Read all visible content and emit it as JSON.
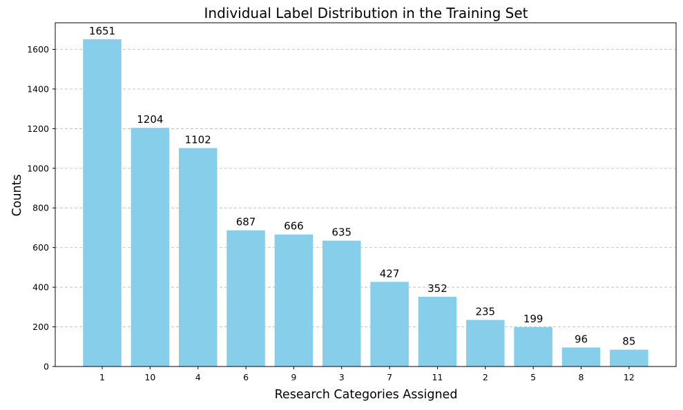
{
  "chart_data": {
    "type": "bar",
    "title": "Individual Label Distribution in the Training Set",
    "xlabel": "Research Categories Assigned",
    "ylabel": "Counts",
    "categories": [
      "1",
      "10",
      "4",
      "6",
      "9",
      "3",
      "7",
      "11",
      "2",
      "5",
      "8",
      "12"
    ],
    "values": [
      1651,
      1204,
      1102,
      687,
      666,
      635,
      427,
      352,
      235,
      199,
      96,
      85
    ],
    "ylim": [
      0,
      1734
    ],
    "yticks": [
      0,
      200,
      400,
      600,
      800,
      1000,
      1200,
      1400,
      1600
    ],
    "grid": "y-dashed",
    "bar_color": "#87CEEB",
    "data_labels": true
  }
}
